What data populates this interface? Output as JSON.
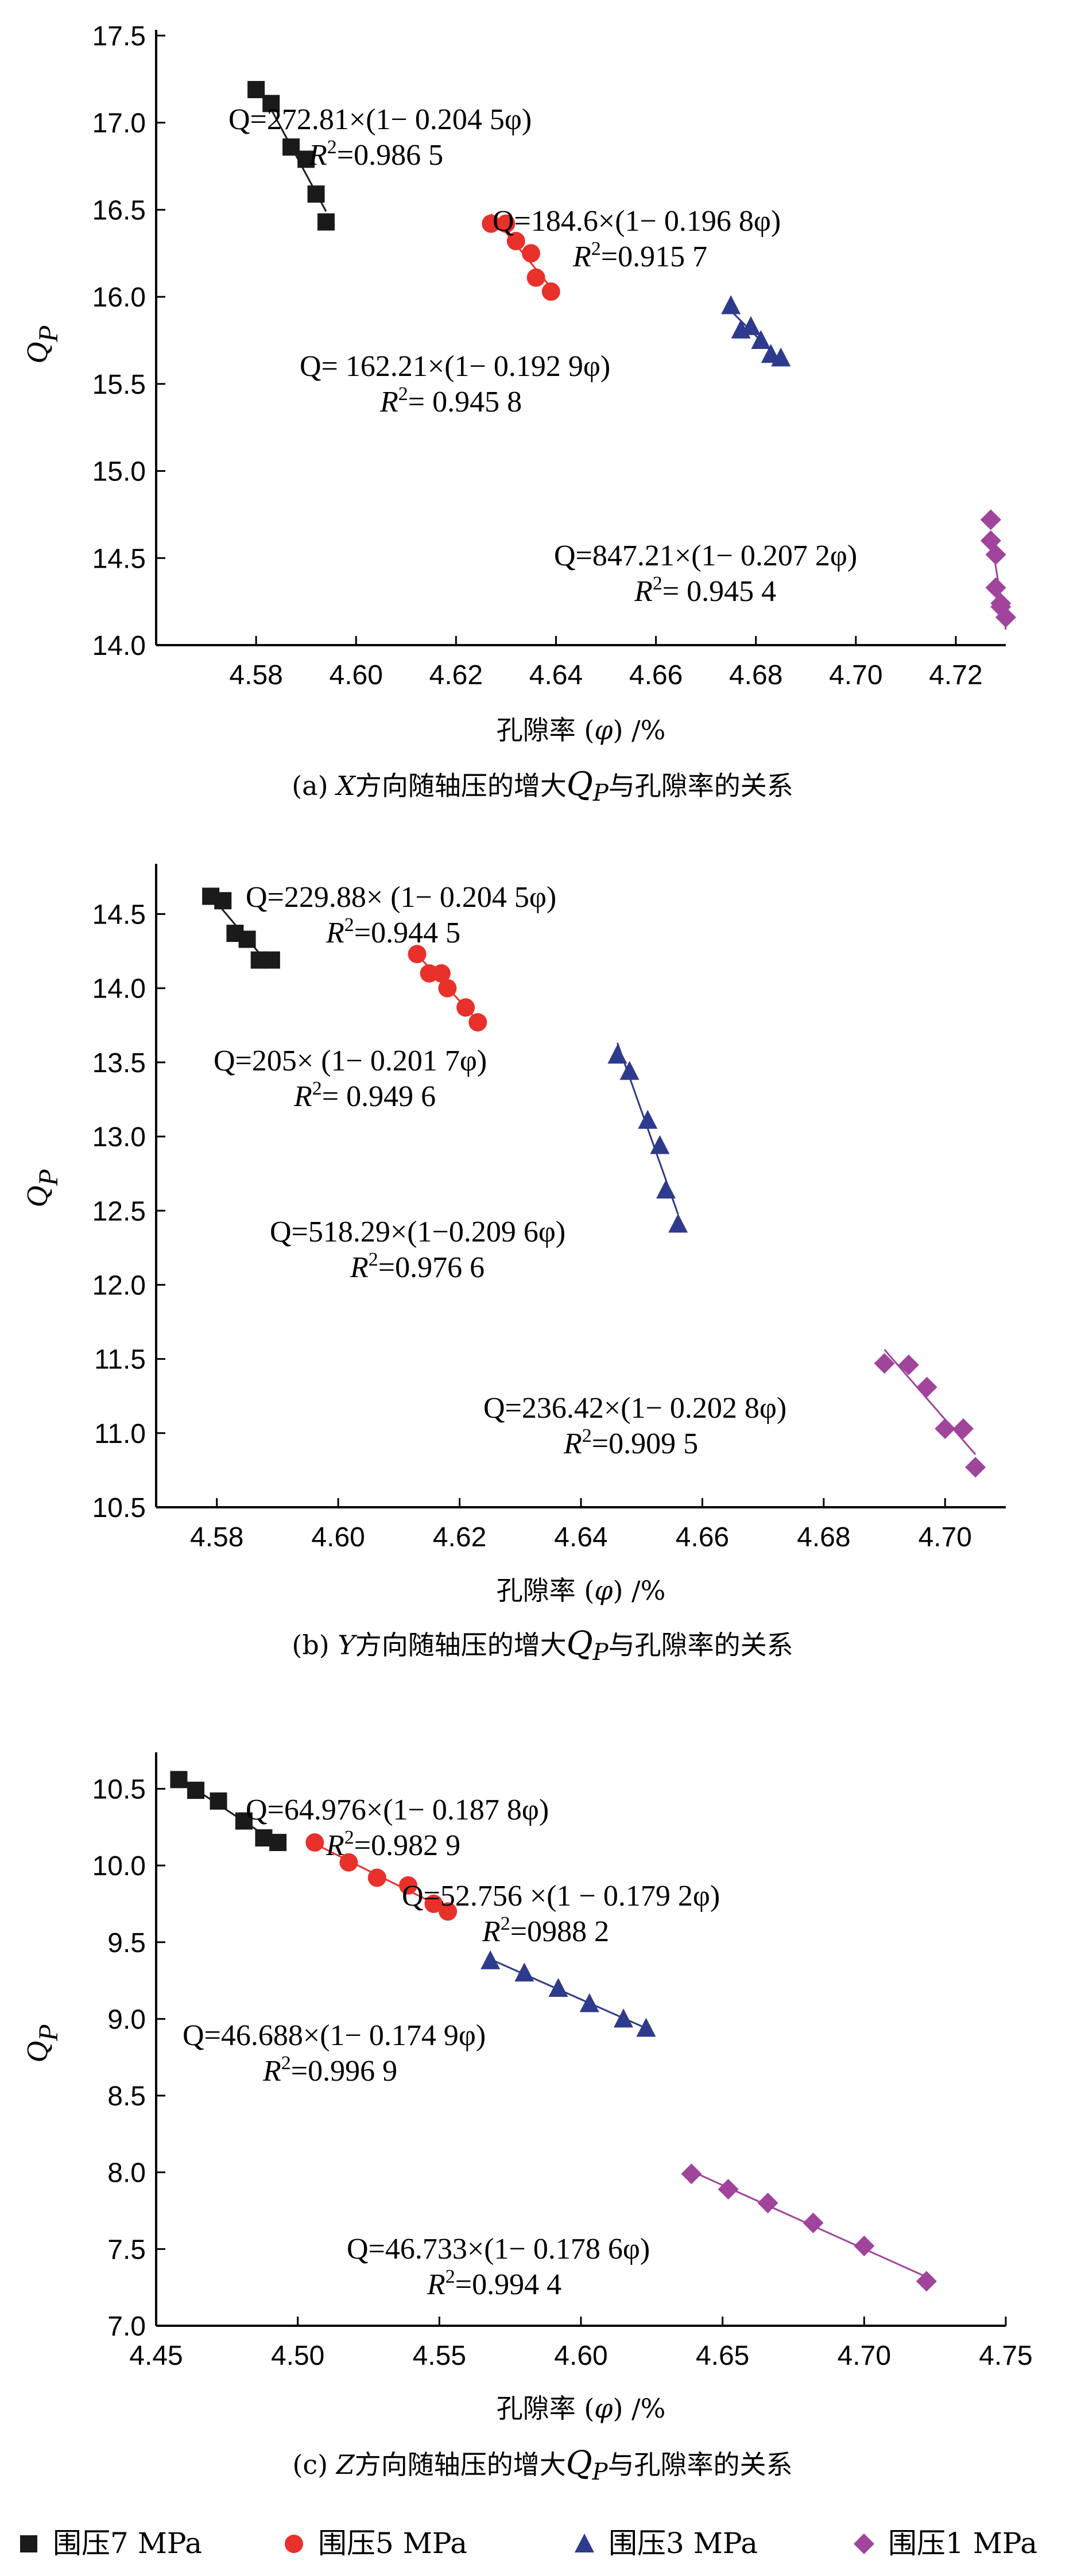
{
  "chart_data": [
    {
      "type": "scatter",
      "caption_prefix": "(a) ",
      "caption_axis": "X",
      "caption_mid": "方向随轴压的增大",
      "caption_q": "Q",
      "caption_p": "P",
      "caption_suffix": "与孔隙率的关系",
      "xlabel_text": "孔隙率 (",
      "xlabel_sym": "φ",
      "xlabel_tail": ") /%",
      "ylabel_q": "Q",
      "ylabel_p": "P",
      "xlim": [
        4.56,
        4.73
      ],
      "ylim": [
        14.0,
        17.5
      ],
      "xticks": [
        "4.58",
        "4.60",
        "4.62",
        "4.64",
        "4.66",
        "4.68",
        "4.70",
        "4.72"
      ],
      "yticks": [
        "14.0",
        "14.5",
        "15.0",
        "15.5",
        "16.0",
        "16.5",
        "17.0",
        "17.5"
      ],
      "series": [
        {
          "x": [
            4.58,
            4.583,
            4.587,
            4.59,
            4.592,
            4.594
          ],
          "y": [
            17.19,
            17.11,
            16.86,
            16.79,
            16.59,
            16.43
          ]
        },
        {
          "x": [
            4.627,
            4.63,
            4.632,
            4.635,
            4.636,
            4.639
          ],
          "y": [
            16.42,
            16.42,
            16.32,
            16.25,
            16.11,
            16.03
          ]
        },
        {
          "x": [
            4.675,
            4.677,
            4.679,
            4.681,
            4.683,
            4.685
          ],
          "y": [
            15.95,
            15.81,
            15.83,
            15.75,
            15.67,
            15.65
          ]
        },
        {
          "x": [
            4.727,
            4.727,
            4.728,
            4.728,
            4.729,
            4.729,
            4.73
          ],
          "y": [
            14.72,
            14.6,
            14.52,
            14.33,
            14.24,
            14.22,
            14.16
          ]
        }
      ],
      "annotations": [
        {
          "eq": "Q=272.81×(1− 0.204 5φ)",
          "r2_val": "=0.986 5"
        },
        {
          "eq": "Q=184.6×(1− 0.196 8φ)",
          "r2_val": "=0.915 7"
        },
        {
          "eq": "Q= 162.21×(1− 0.192 9φ)",
          "r2_val": "= 0.945 8"
        },
        {
          "eq": "Q=847.21×(1− 0.207 2φ)",
          "r2_val": "= 0.945 4"
        }
      ]
    },
    {
      "type": "scatter",
      "caption_prefix": "(b) ",
      "caption_axis": "Y",
      "caption_mid": "方向随轴压的增大",
      "caption_q": "Q",
      "caption_p": "P",
      "caption_suffix": "与孔隙率的关系",
      "xlabel_text": "孔隙率 (",
      "xlabel_sym": "φ",
      "xlabel_tail": ") /%",
      "ylabel_q": "Q",
      "ylabel_p": "P",
      "xlim": [
        4.57,
        4.71
      ],
      "ylim": [
        10.5,
        14.8
      ],
      "xticks": [
        "4.58",
        "4.60",
        "4.62",
        "4.64",
        "4.66",
        "4.68",
        "4.70"
      ],
      "yticks": [
        "10.5",
        "11.0",
        "11.5",
        "12.0",
        "12.5",
        "13.0",
        "13.5",
        "14.0",
        "14.5"
      ],
      "series": [
        {
          "x": [
            4.579,
            4.581,
            4.583,
            4.585,
            4.587,
            4.589
          ],
          "y": [
            14.62,
            14.59,
            14.37,
            14.33,
            14.19,
            14.19
          ]
        },
        {
          "x": [
            4.613,
            4.615,
            4.617,
            4.618,
            4.621,
            4.623
          ],
          "y": [
            14.23,
            14.1,
            14.1,
            14.0,
            13.87,
            13.77
          ]
        },
        {
          "x": [
            4.646,
            4.648,
            4.651,
            4.653,
            4.654,
            4.656
          ],
          "y": [
            13.55,
            13.44,
            13.11,
            12.94,
            12.64,
            12.41
          ]
        },
        {
          "x": [
            4.69,
            4.694,
            4.697,
            4.7,
            4.703,
            4.705
          ],
          "y": [
            11.47,
            11.46,
            11.31,
            11.03,
            11.03,
            10.77
          ]
        }
      ],
      "annotations": [
        {
          "eq": "Q=229.88× (1− 0.204 5φ)",
          "r2_val": "=0.944 5"
        },
        {
          "eq": "Q=205× (1− 0.201 7φ)",
          "r2_val": "= 0.949 6"
        },
        {
          "eq": "Q=518.29×(1−0.209 6φ)",
          "r2_val": "=0.976 6"
        },
        {
          "eq": "Q=236.42×(1− 0.202 8φ)",
          "r2_val": "=0.909 5"
        }
      ]
    },
    {
      "type": "scatter",
      "caption_prefix": "(c) ",
      "caption_axis": "Z",
      "caption_mid": "方向随轴压的增大",
      "caption_q": "Q",
      "caption_p": "P",
      "caption_suffix": "与孔隙率的关系",
      "xlabel_text": "孔隙率 (",
      "xlabel_sym": "φ",
      "xlabel_tail": ") /%",
      "ylabel_q": "Q",
      "ylabel_p": "P",
      "xlim": [
        4.45,
        4.75
      ],
      "ylim": [
        7.0,
        10.7
      ],
      "xticks": [
        "4.45",
        "4.50",
        "4.55",
        "4.60",
        "4.65",
        "4.70",
        "4.75"
      ],
      "yticks": [
        "7.0",
        "7.5",
        "8.0",
        "8.5",
        "9.0",
        "9.5",
        "10.0",
        "10.5"
      ],
      "series": [
        {
          "x": [
            4.458,
            4.464,
            4.472,
            4.481,
            4.488,
            4.493
          ],
          "y": [
            10.56,
            10.49,
            10.42,
            10.29,
            10.18,
            10.15
          ]
        },
        {
          "x": [
            4.506,
            4.518,
            4.528,
            4.539,
            4.548,
            4.553
          ],
          "y": [
            10.15,
            10.02,
            9.92,
            9.87,
            9.75,
            9.7
          ]
        },
        {
          "x": [
            4.568,
            4.58,
            4.592,
            4.603,
            4.615,
            4.623
          ],
          "y": [
            9.38,
            9.3,
            9.2,
            9.1,
            9.0,
            8.94
          ]
        },
        {
          "x": [
            4.639,
            4.652,
            4.666,
            4.682,
            4.7,
            4.722
          ],
          "y": [
            7.99,
            7.89,
            7.8,
            7.67,
            7.52,
            7.29
          ]
        }
      ],
      "annotations": [
        {
          "eq": "Q=64.976×(1− 0.187 8φ)",
          "r2_val": "=0.982 9"
        },
        {
          "eq": "Q=52.756 ×(1 − 0.179 2φ)",
          "r2_val": "=0988 2"
        },
        {
          "eq": "Q=46.688×(1− 0.174 9φ)",
          "r2_val": "=0.996 9"
        },
        {
          "eq": "Q=46.733×(1− 0.178 6φ)",
          "r2_val": "=0.994 4"
        }
      ]
    }
  ],
  "legend": [
    {
      "label": "围压7 MPa",
      "color": "#1a1a1a",
      "marker": "square"
    },
    {
      "label": "围压5 MPa",
      "color": "#e8312a",
      "marker": "circle"
    },
    {
      "label": "围压3 MPa",
      "color": "#2e3a8c",
      "marker": "triangle"
    },
    {
      "label": "围压1 MPa",
      "color": "#a0449c",
      "marker": "diamond"
    }
  ],
  "r2_symbol": "R",
  "r2_sup": "2"
}
